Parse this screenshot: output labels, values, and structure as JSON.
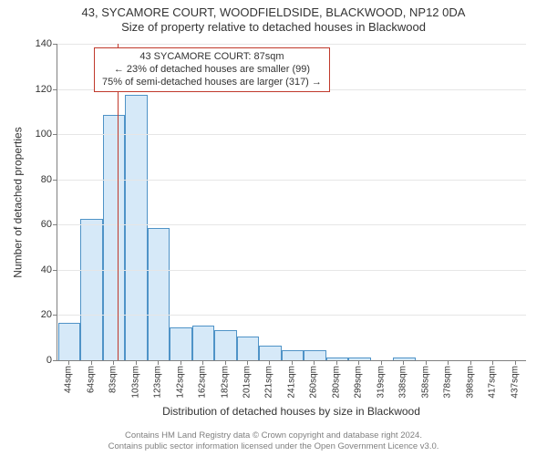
{
  "header": {
    "address": "43, SYCAMORE COURT, WOODFIELDSIDE, BLACKWOOD, NP12 0DA",
    "subtitle": "Size of property relative to detached houses in Blackwood"
  },
  "chart": {
    "type": "histogram",
    "y_axis_title": "Number of detached properties",
    "x_axis_title": "Distribution of detached houses by size in Blackwood",
    "ylim": [
      0,
      140
    ],
    "ytick_step": 20,
    "bar_fill": "#d6e9f8",
    "bar_stroke": "#4f93c7",
    "grid_color": "#e6e6e6",
    "axis_color": "#808080",
    "marker": {
      "x_value": 87,
      "color": "#c0392b",
      "width": 1.5
    },
    "bins": [
      {
        "label": "44sqm",
        "count": 16
      },
      {
        "label": "64sqm",
        "count": 62
      },
      {
        "label": "83sqm",
        "count": 108
      },
      {
        "label": "103sqm",
        "count": 117
      },
      {
        "label": "123sqm",
        "count": 58
      },
      {
        "label": "142sqm",
        "count": 14
      },
      {
        "label": "162sqm",
        "count": 15
      },
      {
        "label": "182sqm",
        "count": 13
      },
      {
        "label": "201sqm",
        "count": 10
      },
      {
        "label": "221sqm",
        "count": 6
      },
      {
        "label": "241sqm",
        "count": 4
      },
      {
        "label": "260sqm",
        "count": 4
      },
      {
        "label": "280sqm",
        "count": 1
      },
      {
        "label": "299sqm",
        "count": 1
      },
      {
        "label": "319sqm",
        "count": 0
      },
      {
        "label": "338sqm",
        "count": 1
      },
      {
        "label": "358sqm",
        "count": 0
      },
      {
        "label": "378sqm",
        "count": 0
      },
      {
        "label": "398sqm",
        "count": 0
      },
      {
        "label": "417sqm",
        "count": 0
      },
      {
        "label": "437sqm",
        "count": 0
      }
    ],
    "bin_start": 44,
    "bin_width_sqm": 19.65
  },
  "info_box": {
    "border_color": "#c0392b",
    "line1": "43 SYCAMORE COURT: 87sqm",
    "line2": "← 23% of detached houses are smaller (99)",
    "line3": "75% of semi-detached houses are larger (317) →"
  },
  "footer": {
    "line1": "Contains HM Land Registry data © Crown copyright and database right 2024.",
    "line2": "Contains public sector information licensed under the Open Government Licence v3.0."
  }
}
